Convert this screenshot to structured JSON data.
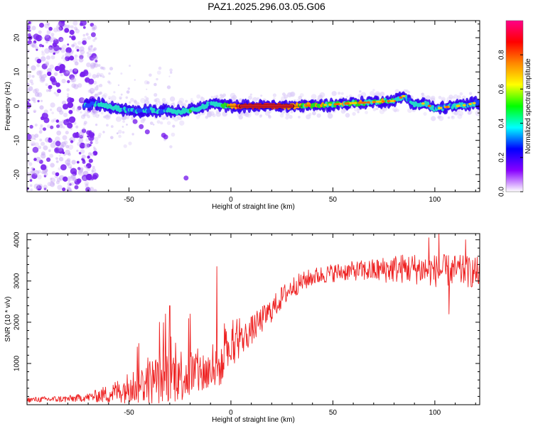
{
  "title": "PAZ1.2025.296.03.05.G06",
  "colors": {
    "snr_line": "#ee2222",
    "ridge_core": "#e8202a",
    "ridge_mid": "#22d8c8",
    "ridge_green": "#22dd22",
    "ridge_edge": "#3300ee",
    "scatter": "#7a22ee"
  },
  "chart_data": [
    {
      "type": "heatmap",
      "xlabel": "Height of straight line (km)",
      "ylabel": "Frequency (Hz)",
      "xlim": [
        -100,
        122
      ],
      "ylim": [
        -25,
        25
      ],
      "xticks": [
        -50,
        0,
        50,
        100
      ],
      "yticks": [
        -20,
        -10,
        0,
        10,
        20
      ],
      "xtick_labels": [
        "-50",
        "0",
        "50",
        "100"
      ],
      "ytick_labels": [
        "-20",
        "-10",
        "0",
        "10",
        "20"
      ],
      "colorbar": {
        "label": "Normalized spectral amplitude",
        "range": [
          0,
          1
        ],
        "ticks": [
          0.0,
          0.2,
          0.4,
          0.6,
          0.8
        ],
        "tick_labels": [
          "0.0",
          "0.2",
          "0.4",
          "0.6",
          "0.8"
        ],
        "stops": [
          "#ffffff",
          "#8800ff",
          "#0000ff",
          "#00ffff",
          "#00ff00",
          "#ffff00",
          "#ff8800",
          "#ff0000",
          "#ff0088"
        ]
      },
      "ridge": [
        {
          "x": -72,
          "y": 0.3,
          "a": 0.35
        },
        {
          "x": -65,
          "y": 0.6,
          "a": 0.45
        },
        {
          "x": -60,
          "y": 0.0,
          "a": 0.5
        },
        {
          "x": -55,
          "y": -0.8,
          "a": 0.45
        },
        {
          "x": -50,
          "y": -1.2,
          "a": 0.4
        },
        {
          "x": -45,
          "y": -1.5,
          "a": 0.38
        },
        {
          "x": -40,
          "y": -1.0,
          "a": 0.42
        },
        {
          "x": -35,
          "y": -1.6,
          "a": 0.4
        },
        {
          "x": -30,
          "y": -1.2,
          "a": 0.45
        },
        {
          "x": -25,
          "y": -1.8,
          "a": 0.5
        },
        {
          "x": -20,
          "y": -1.0,
          "a": 0.55
        },
        {
          "x": -15,
          "y": -0.5,
          "a": 0.5
        },
        {
          "x": -10,
          "y": 0.6,
          "a": 0.45
        },
        {
          "x": -5,
          "y": 0.4,
          "a": 0.55
        },
        {
          "x": 0,
          "y": 0.0,
          "a": 0.7
        },
        {
          "x": 5,
          "y": 0.0,
          "a": 0.9
        },
        {
          "x": 10,
          "y": 0.0,
          "a": 0.95
        },
        {
          "x": 15,
          "y": 0.0,
          "a": 0.95
        },
        {
          "x": 20,
          "y": 0.0,
          "a": 0.92
        },
        {
          "x": 25,
          "y": 0.0,
          "a": 0.85
        },
        {
          "x": 30,
          "y": 0.0,
          "a": 0.8
        },
        {
          "x": 35,
          "y": 0.1,
          "a": 0.65
        },
        {
          "x": 40,
          "y": 0.2,
          "a": 0.7
        },
        {
          "x": 45,
          "y": 0.3,
          "a": 0.65
        },
        {
          "x": 50,
          "y": 0.5,
          "a": 0.6
        },
        {
          "x": 55,
          "y": 0.7,
          "a": 0.65
        },
        {
          "x": 60,
          "y": 0.9,
          "a": 0.6
        },
        {
          "x": 65,
          "y": 1.0,
          "a": 0.65
        },
        {
          "x": 70,
          "y": 1.2,
          "a": 0.6
        },
        {
          "x": 75,
          "y": 1.4,
          "a": 0.65
        },
        {
          "x": 80,
          "y": 1.5,
          "a": 0.55
        },
        {
          "x": 85,
          "y": 3.0,
          "a": 0.4
        },
        {
          "x": 90,
          "y": 0.5,
          "a": 0.45
        },
        {
          "x": 95,
          "y": 0.8,
          "a": 0.5
        },
        {
          "x": 100,
          "y": -0.8,
          "a": 0.4
        },
        {
          "x": 105,
          "y": -0.3,
          "a": 0.4
        },
        {
          "x": 110,
          "y": 0.0,
          "a": 0.45
        },
        {
          "x": 115,
          "y": 0.3,
          "a": 0.45
        },
        {
          "x": 120,
          "y": 1.0,
          "a": 0.4
        }
      ]
    },
    {
      "type": "line",
      "xlabel": "Height of straight line (km)",
      "ylabel": "SNR (10 * v/v)",
      "xlim": [
        -100,
        122
      ],
      "ylim": [
        0,
        4150
      ],
      "xticks": [
        -50,
        0,
        50,
        100
      ],
      "yticks": [
        1000,
        2000,
        3000,
        4000
      ],
      "xtick_labels": [
        "-50",
        "0",
        "50",
        "100"
      ],
      "ytick_labels": [
        "1000",
        "2000",
        "3000",
        "4000"
      ],
      "series": [
        {
          "trend": [
            {
              "x": -100,
              "y": 120
            },
            {
              "x": -80,
              "y": 140
            },
            {
              "x": -70,
              "y": 180
            },
            {
              "x": -60,
              "y": 260
            },
            {
              "x": -50,
              "y": 420
            },
            {
              "x": -40,
              "y": 560
            },
            {
              "x": -30,
              "y": 720
            },
            {
              "x": -20,
              "y": 750
            },
            {
              "x": -10,
              "y": 800
            },
            {
              "x": -5,
              "y": 900
            },
            {
              "x": 0,
              "y": 1300
            },
            {
              "x": 10,
              "y": 1800
            },
            {
              "x": 20,
              "y": 2300
            },
            {
              "x": 25,
              "y": 2600
            },
            {
              "x": 30,
              "y": 2850
            },
            {
              "x": 40,
              "y": 3100
            },
            {
              "x": 50,
              "y": 3200
            },
            {
              "x": 60,
              "y": 3250
            },
            {
              "x": 70,
              "y": 3250
            },
            {
              "x": 80,
              "y": 3300
            },
            {
              "x": 90,
              "y": 3300
            },
            {
              "x": 100,
              "y": 3250
            },
            {
              "x": 110,
              "y": 3250
            },
            {
              "x": 122,
              "y": 3200
            }
          ],
          "noise": [
            {
              "x": -100,
              "y": 60
            },
            {
              "x": -70,
              "y": 100
            },
            {
              "x": -55,
              "y": 300
            },
            {
              "x": -40,
              "y": 550
            },
            {
              "x": -30,
              "y": 700
            },
            {
              "x": -20,
              "y": 650
            },
            {
              "x": -10,
              "y": 500
            },
            {
              "x": 0,
              "y": 400
            },
            {
              "x": 20,
              "y": 300
            },
            {
              "x": 40,
              "y": 220
            },
            {
              "x": 60,
              "y": 230
            },
            {
              "x": 80,
              "y": 350
            },
            {
              "x": 100,
              "y": 400
            },
            {
              "x": 122,
              "y": 380
            }
          ],
          "spikes": [
            {
              "x": -46,
              "y": 1400
            },
            {
              "x": -35,
              "y": 2000
            },
            {
              "x": -32,
              "y": 2200
            },
            {
              "x": -30,
              "y": 2400
            },
            {
              "x": -20,
              "y": 2200
            },
            {
              "x": -7,
              "y": 3350
            },
            {
              "x": 1,
              "y": 2050
            },
            {
              "x": 97,
              "y": 4050
            },
            {
              "x": 102,
              "y": 4150
            },
            {
              "x": 107,
              "y": 2200
            },
            {
              "x": 115,
              "y": 4000
            }
          ],
          "n_samples": 900
        }
      ]
    }
  ]
}
